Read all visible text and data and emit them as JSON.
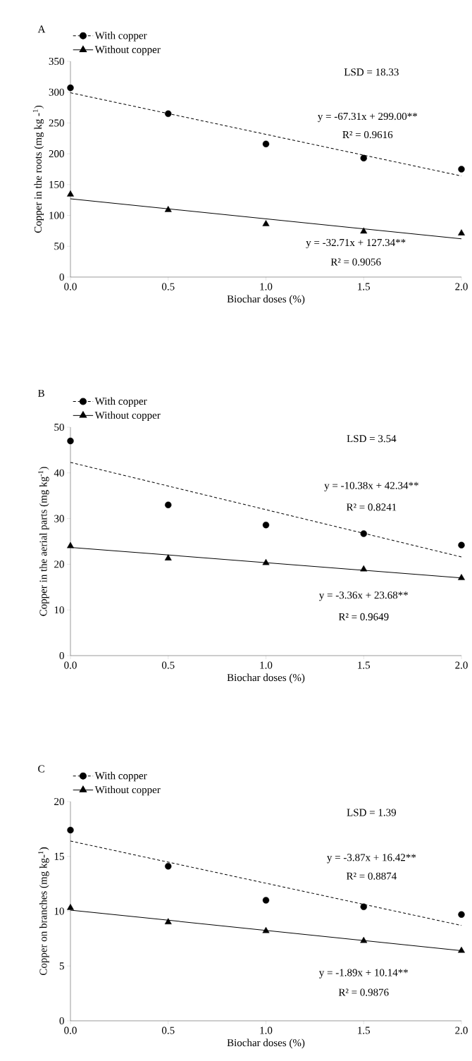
{
  "chart_data": [
    {
      "type": "scatter",
      "title": "A",
      "xlabel": "Biochar doses (%)",
      "ylabel": "Copper in the roots (mg kg -$^{1}$)",
      "xlim": [
        0,
        2
      ],
      "ylim": [
        0,
        350
      ],
      "xticks": [
        {
          "value": 0,
          "label": "0.0"
        },
        {
          "value": 0.5,
          "label": "0.5"
        },
        {
          "value": 1,
          "label": "1.0"
        },
        {
          "value": 1.5,
          "label": "1.5"
        },
        {
          "value": 2,
          "label": "2.0"
        }
      ],
      "yticks": [
        0,
        50,
        100,
        150,
        200,
        250,
        300,
        350
      ],
      "legend": "top left",
      "annotations": [
        "LSD = 18.33",
        "y = -67.31x + 299.00**",
        "R² = 0.9616",
        "y = -32.71x + 127.34**",
        "R² = 0.9056"
      ],
      "series": [
        {
          "name": "With copper",
          "color": "#000000",
          "marker": "circle",
          "line_style": "dashed",
          "x": [
            0,
            0.5,
            1,
            1.5,
            2
          ],
          "values": [
            307,
            265,
            216,
            193,
            175
          ]
        },
        {
          "name": "Without copper",
          "color": "#000000",
          "marker": "triangle",
          "line_style": "solid",
          "x": [
            0,
            0.5,
            1,
            1.5,
            2
          ],
          "values": [
            134,
            109,
            86,
            74,
            71
          ]
        },
        {
          "type": "line",
          "color": "#000000",
          "line_style": "dashed",
          "x": [
            0,
            2
          ],
          "values": [
            299,
            164
          ]
        },
        {
          "type": "line",
          "color": "#000000",
          "line_style": "solid",
          "x": [
            0,
            2
          ],
          "values": [
            127,
            62
          ]
        }
      ]
    },
    {
      "type": "scatter",
      "title": "B",
      "xlabel": "Biochar doses (%)",
      "ylabel": "Copper in the aerial parts (mg kg$^{-1}$)",
      "xlim": [
        0,
        2
      ],
      "ylim": [
        0,
        50
      ],
      "xticks": [
        {
          "value": 0,
          "label": "0.0"
        },
        {
          "value": 0.5,
          "label": "0.5"
        },
        {
          "value": 1,
          "label": "1.0"
        },
        {
          "value": 1.5,
          "label": "1.5"
        },
        {
          "value": 2,
          "label": "2.0"
        }
      ],
      "yticks": [
        0,
        10,
        20,
        30,
        40,
        50
      ],
      "legend": "top left",
      "annotations": [
        "LSD = 3.54",
        "y = -10.38x + 42.34**",
        "R² = 0.8241",
        "y = -3.36x + 23.68**",
        "R² = 0.9649"
      ],
      "series": [
        {
          "name": "With copper",
          "color": "#000000",
          "marker": "circle",
          "line_style": "dashed",
          "x": [
            0,
            0.5,
            1,
            1.5,
            2
          ],
          "values": [
            47,
            33,
            28.6,
            26.7,
            24.2
          ]
        },
        {
          "name": "Without copper",
          "color": "#000000",
          "marker": "triangle",
          "line_style": "solid",
          "x": [
            0,
            0.5,
            1,
            1.5,
            2
          ],
          "values": [
            24,
            21.3,
            20.3,
            18.9,
            17
          ]
        },
        {
          "type": "line",
          "color": "#000000",
          "line_style": "dashed",
          "x": [
            0,
            2
          ],
          "values": [
            42.3,
            21.6
          ]
        },
        {
          "type": "line",
          "color": "#000000",
          "line_style": "solid",
          "x": [
            0,
            2
          ],
          "values": [
            23.7,
            17
          ]
        }
      ]
    },
    {
      "type": "scatter",
      "title": "C",
      "xlabel": "Biochar doses (%)",
      "ylabel": "Copper on branches (mg kg-$^{1}$)",
      "xlim": [
        0,
        2
      ],
      "ylim": [
        0,
        20
      ],
      "xticks": [
        {
          "value": 0,
          "label": "0.0"
        },
        {
          "value": 0.5,
          "label": "0.5"
        },
        {
          "value": 1,
          "label": "1.0"
        },
        {
          "value": 1.5,
          "label": "1.5"
        },
        {
          "value": 2,
          "label": "2.0"
        }
      ],
      "yticks": [
        0,
        5,
        10,
        15,
        20
      ],
      "legend": "top left",
      "annotations": [
        "LSD = 1.39",
        "y = -3.87x + 16.42**",
        "R² = 0.8874",
        "y = -1.89x + 10.14**",
        "R² = 0.9876"
      ],
      "series": [
        {
          "name": "With copper",
          "color": "#000000",
          "marker": "circle",
          "line_style": "dashed",
          "x": [
            0,
            0.5,
            1,
            1.5,
            2
          ],
          "values": [
            17.4,
            14.1,
            11,
            10.4,
            9.7
          ]
        },
        {
          "name": "Without copper",
          "color": "#000000",
          "marker": "triangle",
          "line_style": "solid",
          "x": [
            0,
            0.5,
            1,
            1.5,
            2
          ],
          "values": [
            10.3,
            9,
            8.2,
            7.3,
            6.4
          ]
        },
        {
          "type": "line",
          "color": "#000000",
          "line_style": "dashed",
          "x": [
            0,
            2
          ],
          "values": [
            16.4,
            8.7
          ]
        },
        {
          "type": "line",
          "color": "#000000",
          "line_style": "solid",
          "x": [
            0,
            2
          ],
          "values": [
            10.1,
            6.4
          ]
        }
      ]
    }
  ]
}
